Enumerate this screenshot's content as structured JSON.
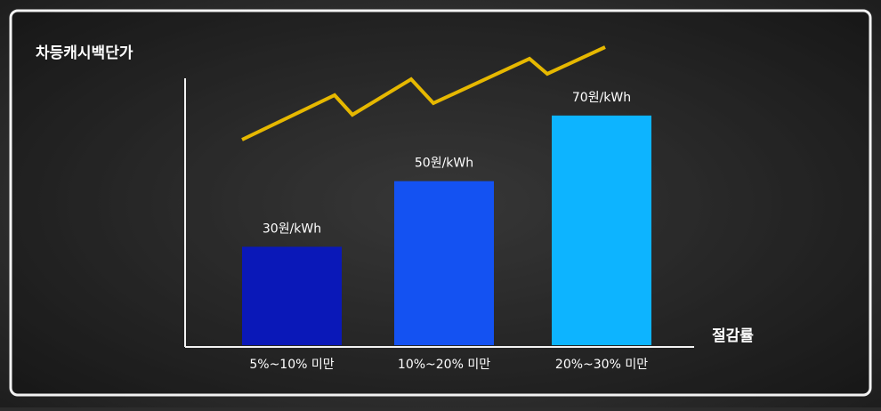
{
  "chart_data": {
    "type": "bar",
    "y_label": "차등캐시백단가",
    "x_label": "절감률",
    "categories": [
      "5%~10% 미만",
      "10%~20% 미만",
      "20%~30% 미만"
    ],
    "values": [
      30,
      50,
      70
    ],
    "value_labels": [
      "30원/kWh",
      "50원/kWh",
      "70원/kWh"
    ],
    "colors": [
      "#0a18b8",
      "#1452f2",
      "#0db4ff"
    ],
    "ylim": [
      0,
      80
    ]
  }
}
